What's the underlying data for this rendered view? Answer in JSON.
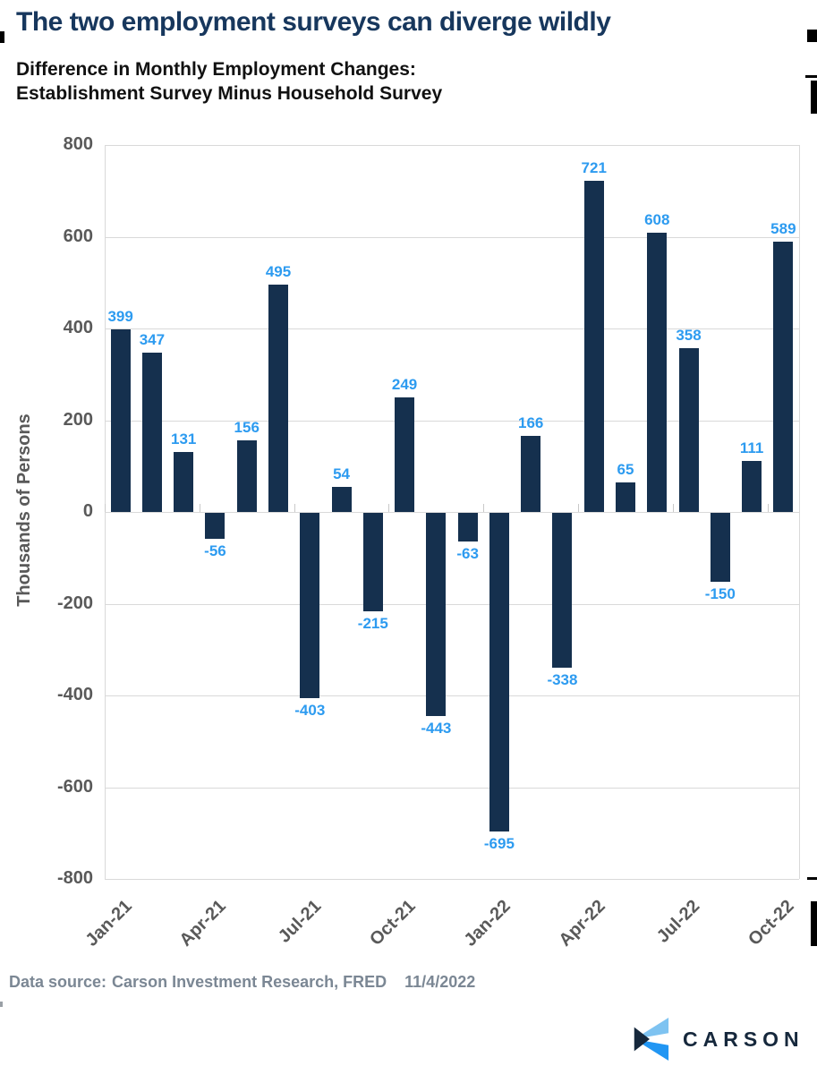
{
  "page": {
    "title": "The two employment surveys can diverge wildly",
    "subtitle_line1": "Difference in Monthly Employment Changes:",
    "subtitle_line2": "Establishment Survey Minus Household Survey",
    "footer": {
      "data_source_label": "Data source:",
      "data_source_value": "Carson Investment Research, FRED",
      "date": "11/4/2022"
    },
    "logo_text": "CARSON"
  },
  "colors": {
    "title_navy": "#17375D",
    "bar_navy": "#15304E",
    "value_label_blue": "#2D9BF0",
    "axis_text_gray": "#595959",
    "grid_gray": "#D9D9D9",
    "footer_gray": "#7B8794",
    "logo_navy": "#16283C",
    "logo_light_blue": "#7EC3F1",
    "logo_bright_blue": "#2196F3"
  },
  "chart_data": {
    "type": "bar",
    "title": "Difference in Monthly Employment Changes: Establishment Survey Minus Household Survey",
    "categories": [
      "Jan-21",
      "Feb-21",
      "Mar-21",
      "Apr-21",
      "May-21",
      "Jun-21",
      "Jul-21",
      "Aug-21",
      "Sep-21",
      "Oct-21",
      "Nov-21",
      "Dec-21",
      "Jan-22",
      "Feb-22",
      "Mar-22",
      "Apr-22",
      "May-22",
      "Jun-22",
      "Jul-22",
      "Aug-22",
      "Sep-22",
      "Oct-22"
    ],
    "values": [
      399,
      347,
      131,
      -56,
      156,
      495,
      -403,
      54,
      -215,
      249,
      -443,
      -63,
      -695,
      166,
      -338,
      721,
      65,
      608,
      358,
      -150,
      111,
      589
    ],
    "x_tick_labels": [
      "Jan-21",
      "Apr-21",
      "Jul-21",
      "Oct-21",
      "Jan-22",
      "Apr-22",
      "Jul-22",
      "Oct-22"
    ],
    "x_tick_every": 3,
    "y_ticks": [
      800,
      600,
      400,
      200,
      0,
      -200,
      -400,
      -600,
      -800
    ],
    "ylim": [
      -800,
      800
    ],
    "xlabel": "",
    "ylabel": "Thousands of Persons",
    "grid": true,
    "legend": "none",
    "bar_color": "#15304E",
    "data_label_color": "#2D9BF0"
  }
}
